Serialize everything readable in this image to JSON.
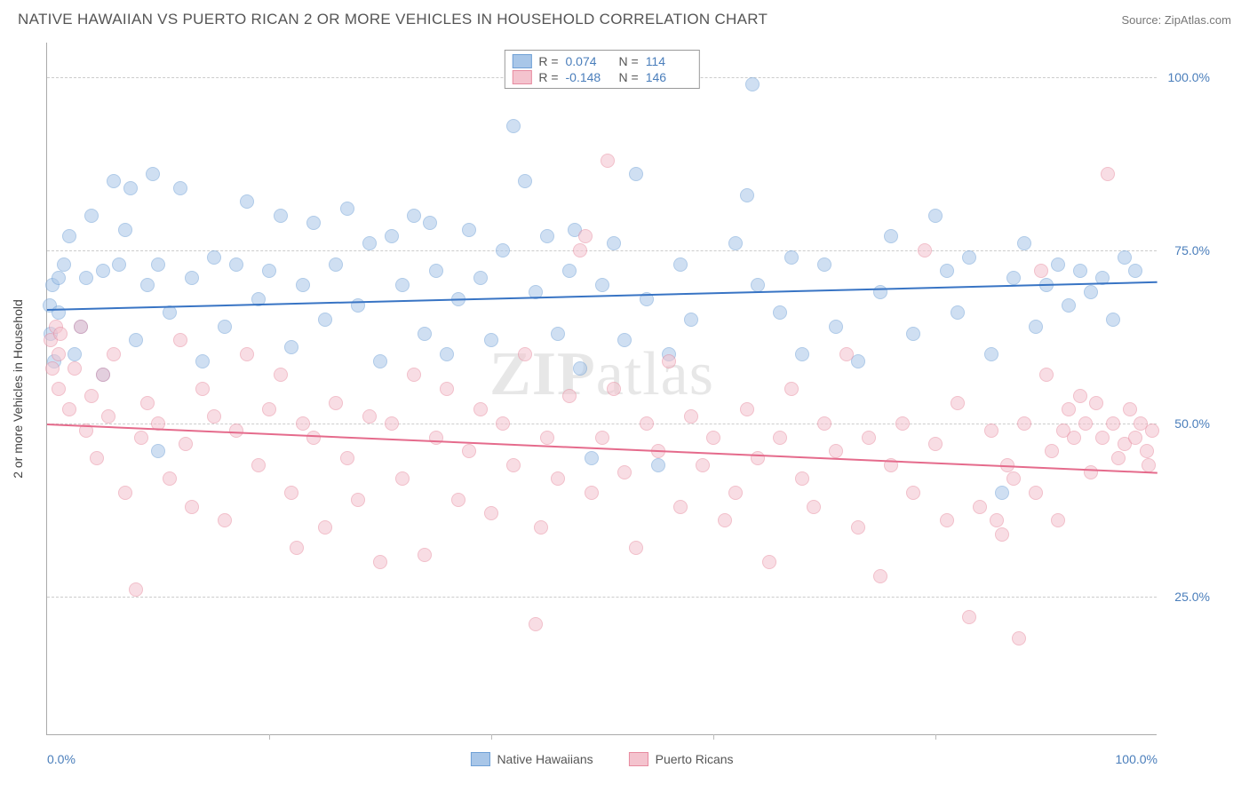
{
  "header": {
    "title": "NATIVE HAWAIIAN VS PUERTO RICAN 2 OR MORE VEHICLES IN HOUSEHOLD CORRELATION CHART",
    "source_prefix": "Source: ",
    "source_name": "ZipAtlas.com"
  },
  "watermark": {
    "part1": "ZIP",
    "part2": "atlas"
  },
  "chart": {
    "type": "scatter",
    "ylabel": "2 or more Vehicles in Household",
    "xlim": [
      0,
      100
    ],
    "ylim": [
      5,
      105
    ],
    "xticks": [
      0,
      100
    ],
    "xtick_labels": [
      "0.0%",
      "100.0%"
    ],
    "xtick_minor": [
      20,
      40,
      60,
      80
    ],
    "yticks": [
      25,
      50,
      75,
      100
    ],
    "ytick_labels": [
      "25.0%",
      "50.0%",
      "75.0%",
      "100.0%"
    ],
    "grid_color": "#cccccc",
    "bg": "#ffffff",
    "marker_radius": 8,
    "marker_opacity": 0.55,
    "series": [
      {
        "name": "Native Hawaiians",
        "fill": "#a8c6e8",
        "stroke": "#6fa0d6",
        "line_color": "#3874c4",
        "r_value": "0.074",
        "n_value": "114",
        "regression": {
          "y_at_x0": 66.5,
          "y_at_x100": 70.5
        },
        "points": [
          [
            0.2,
            67
          ],
          [
            0.3,
            63
          ],
          [
            0.5,
            70
          ],
          [
            0.6,
            59
          ],
          [
            1,
            71
          ],
          [
            1,
            66
          ],
          [
            1.5,
            73
          ],
          [
            2,
            77
          ],
          [
            2.5,
            60
          ],
          [
            3,
            64
          ],
          [
            3.5,
            71
          ],
          [
            4,
            80
          ],
          [
            5,
            72
          ],
          [
            5,
            57
          ],
          [
            6,
            85
          ],
          [
            6.5,
            73
          ],
          [
            7,
            78
          ],
          [
            7.5,
            84
          ],
          [
            8,
            62
          ],
          [
            9,
            70
          ],
          [
            9.5,
            86
          ],
          [
            10,
            73
          ],
          [
            10,
            46
          ],
          [
            11,
            66
          ],
          [
            12,
            84
          ],
          [
            13,
            71
          ],
          [
            14,
            59
          ],
          [
            15,
            74
          ],
          [
            16,
            64
          ],
          [
            17,
            73
          ],
          [
            18,
            82
          ],
          [
            19,
            68
          ],
          [
            20,
            72
          ],
          [
            21,
            80
          ],
          [
            22,
            61
          ],
          [
            23,
            70
          ],
          [
            24,
            79
          ],
          [
            25,
            65
          ],
          [
            26,
            73
          ],
          [
            27,
            81
          ],
          [
            28,
            67
          ],
          [
            29,
            76
          ],
          [
            30,
            59
          ],
          [
            31,
            77
          ],
          [
            32,
            70
          ],
          [
            33,
            80
          ],
          [
            34,
            63
          ],
          [
            34.5,
            79
          ],
          [
            35,
            72
          ],
          [
            36,
            60
          ],
          [
            37,
            68
          ],
          [
            38,
            78
          ],
          [
            39,
            71
          ],
          [
            40,
            62
          ],
          [
            41,
            75
          ],
          [
            42,
            93
          ],
          [
            43,
            85
          ],
          [
            44,
            69
          ],
          [
            45,
            77
          ],
          [
            46,
            63
          ],
          [
            47,
            72
          ],
          [
            47.5,
            78
          ],
          [
            48,
            58
          ],
          [
            49,
            45
          ],
          [
            50,
            70
          ],
          [
            51,
            76
          ],
          [
            52,
            62
          ],
          [
            53,
            86
          ],
          [
            54,
            68
          ],
          [
            55,
            44
          ],
          [
            56,
            60
          ],
          [
            57,
            73
          ],
          [
            58,
            65
          ],
          [
            62,
            76
          ],
          [
            63,
            83
          ],
          [
            63.5,
            99
          ],
          [
            64,
            70
          ],
          [
            66,
            66
          ],
          [
            67,
            74
          ],
          [
            68,
            60
          ],
          [
            70,
            73
          ],
          [
            71,
            64
          ],
          [
            73,
            59
          ],
          [
            75,
            69
          ],
          [
            76,
            77
          ],
          [
            78,
            63
          ],
          [
            80,
            80
          ],
          [
            81,
            72
          ],
          [
            82,
            66
          ],
          [
            83,
            74
          ],
          [
            85,
            60
          ],
          [
            86,
            40
          ],
          [
            87,
            71
          ],
          [
            88,
            76
          ],
          [
            89,
            64
          ],
          [
            90,
            70
          ],
          [
            91,
            73
          ],
          [
            92,
            67
          ],
          [
            93,
            72
          ],
          [
            94,
            69
          ],
          [
            95,
            71
          ],
          [
            96,
            65
          ],
          [
            97,
            74
          ],
          [
            98,
            72
          ]
        ]
      },
      {
        "name": "Puerto Ricans",
        "fill": "#f4c3ce",
        "stroke": "#e78ba0",
        "line_color": "#e56b8c",
        "r_value": "-0.148",
        "n_value": "146",
        "regression": {
          "y_at_x0": 50,
          "y_at_x100": 43
        },
        "points": [
          [
            0.3,
            62
          ],
          [
            0.5,
            58
          ],
          [
            0.8,
            64
          ],
          [
            1,
            55
          ],
          [
            1,
            60
          ],
          [
            1.2,
            63
          ],
          [
            2,
            52
          ],
          [
            2.5,
            58
          ],
          [
            3,
            64
          ],
          [
            3.5,
            49
          ],
          [
            4,
            54
          ],
          [
            4.5,
            45
          ],
          [
            5,
            57
          ],
          [
            5.5,
            51
          ],
          [
            6,
            60
          ],
          [
            7,
            40
          ],
          [
            8,
            26
          ],
          [
            8.5,
            48
          ],
          [
            9,
            53
          ],
          [
            10,
            50
          ],
          [
            11,
            42
          ],
          [
            12,
            62
          ],
          [
            12.5,
            47
          ],
          [
            13,
            38
          ],
          [
            14,
            55
          ],
          [
            15,
            51
          ],
          [
            16,
            36
          ],
          [
            17,
            49
          ],
          [
            18,
            60
          ],
          [
            19,
            44
          ],
          [
            20,
            52
          ],
          [
            21,
            57
          ],
          [
            22,
            40
          ],
          [
            22.5,
            32
          ],
          [
            23,
            50
          ],
          [
            24,
            48
          ],
          [
            25,
            35
          ],
          [
            26,
            53
          ],
          [
            27,
            45
          ],
          [
            28,
            39
          ],
          [
            29,
            51
          ],
          [
            30,
            30
          ],
          [
            31,
            50
          ],
          [
            32,
            42
          ],
          [
            33,
            57
          ],
          [
            34,
            31
          ],
          [
            35,
            48
          ],
          [
            36,
            55
          ],
          [
            37,
            39
          ],
          [
            38,
            46
          ],
          [
            39,
            52
          ],
          [
            40,
            37
          ],
          [
            41,
            50
          ],
          [
            42,
            44
          ],
          [
            43,
            60
          ],
          [
            44,
            21
          ],
          [
            44.5,
            35
          ],
          [
            45,
            48
          ],
          [
            46,
            42
          ],
          [
            47,
            54
          ],
          [
            48,
            75
          ],
          [
            48.5,
            77
          ],
          [
            49,
            40
          ],
          [
            50,
            48
          ],
          [
            50.5,
            88
          ],
          [
            51,
            55
          ],
          [
            52,
            43
          ],
          [
            53,
            32
          ],
          [
            54,
            50
          ],
          [
            55,
            46
          ],
          [
            56,
            59
          ],
          [
            57,
            38
          ],
          [
            58,
            51
          ],
          [
            59,
            44
          ],
          [
            60,
            48
          ],
          [
            61,
            36
          ],
          [
            62,
            40
          ],
          [
            63,
            52
          ],
          [
            64,
            45
          ],
          [
            65,
            30
          ],
          [
            66,
            48
          ],
          [
            67,
            55
          ],
          [
            68,
            42
          ],
          [
            69,
            38
          ],
          [
            70,
            50
          ],
          [
            71,
            46
          ],
          [
            72,
            60
          ],
          [
            73,
            35
          ],
          [
            74,
            48
          ],
          [
            75,
            28
          ],
          [
            76,
            44
          ],
          [
            77,
            50
          ],
          [
            78,
            40
          ],
          [
            79,
            75
          ],
          [
            80,
            47
          ],
          [
            81,
            36
          ],
          [
            82,
            53
          ],
          [
            83,
            22
          ],
          [
            84,
            38
          ],
          [
            85,
            49
          ],
          [
            85.5,
            36
          ],
          [
            86,
            34
          ],
          [
            86.5,
            44
          ],
          [
            87,
            42
          ],
          [
            87.5,
            19
          ],
          [
            88,
            50
          ],
          [
            89,
            40
          ],
          [
            89.5,
            72
          ],
          [
            90,
            57
          ],
          [
            90.5,
            46
          ],
          [
            91,
            36
          ],
          [
            91.5,
            49
          ],
          [
            92,
            52
          ],
          [
            92.5,
            48
          ],
          [
            93,
            54
          ],
          [
            93.5,
            50
          ],
          [
            94,
            43
          ],
          [
            94.5,
            53
          ],
          [
            95,
            48
          ],
          [
            95.5,
            86
          ],
          [
            96,
            50
          ],
          [
            96.5,
            45
          ],
          [
            97,
            47
          ],
          [
            97.5,
            52
          ],
          [
            98,
            48
          ],
          [
            98.5,
            50
          ],
          [
            99,
            46
          ],
          [
            99.2,
            44
          ],
          [
            99.5,
            49
          ]
        ]
      }
    ],
    "stats_legend": {
      "r_label": "R =",
      "n_label": "N ="
    },
    "bottom_legend": {
      "items": [
        {
          "label": "Native Hawaiians",
          "fill": "#a8c6e8",
          "stroke": "#6fa0d6"
        },
        {
          "label": "Puerto Ricans",
          "fill": "#f4c3ce",
          "stroke": "#e78ba0"
        }
      ]
    }
  }
}
